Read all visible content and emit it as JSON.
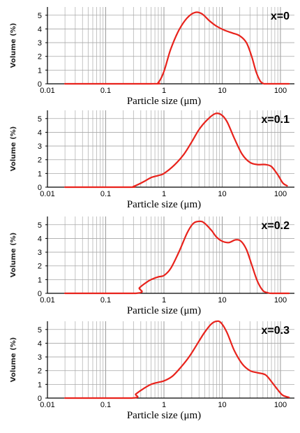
{
  "chart_data": [
    {
      "type": "line",
      "title": "x=0",
      "xlabel": "Particle size (μm)",
      "ylabel": "Volume (%)",
      "xscale": "log",
      "xlim": [
        0.01,
        150
      ],
      "ylim": [
        0,
        5.6
      ],
      "xticks": [
        "0.01",
        "0.1",
        "1",
        "10",
        "100"
      ],
      "yticks": [
        "0",
        "1",
        "2",
        "3",
        "4",
        "5"
      ],
      "grid": true,
      "line_color": "#e8231c",
      "x": [
        0.02,
        0.6,
        0.8,
        1.0,
        1.3,
        1.8,
        2.5,
        3.4,
        4.5,
        6.0,
        8.0,
        11.0,
        15.0,
        20.0,
        26.0,
        32.0,
        38.0,
        45.0,
        52.0,
        60.0,
        140.0
      ],
      "y": [
        0,
        0,
        0.1,
        0.9,
        2.5,
        3.9,
        4.8,
        5.2,
        5.1,
        4.6,
        4.2,
        3.9,
        3.7,
        3.5,
        3.0,
        2.0,
        0.9,
        0.2,
        0,
        0,
        0
      ]
    },
    {
      "type": "line",
      "title": "x=0.1",
      "xlabel": "Particle size (μm)",
      "ylabel": "Volume (%)",
      "xscale": "log",
      "xlim": [
        0.01,
        150
      ],
      "ylim": [
        0,
        5.6
      ],
      "xticks": [
        "0.01",
        "0.1",
        "1",
        "10",
        "100"
      ],
      "yticks": [
        "0",
        "1",
        "2",
        "3",
        "4",
        "5"
      ],
      "grid": true,
      "line_color": "#e8231c",
      "x": [
        0.02,
        0.25,
        0.3,
        0.45,
        0.6,
        0.8,
        1.0,
        1.5,
        2.2,
        3.0,
        4.0,
        5.5,
        7.5,
        9.5,
        12.0,
        16.0,
        22.0,
        30.0,
        40.0,
        55.0,
        70.0,
        90.0,
        110.0,
        130.0
      ],
      "y": [
        0,
        0,
        0.05,
        0.4,
        0.7,
        0.85,
        1.0,
        1.6,
        2.4,
        3.3,
        4.2,
        4.9,
        5.35,
        5.3,
        4.8,
        3.6,
        2.4,
        1.8,
        1.65,
        1.65,
        1.5,
        0.9,
        0.3,
        0.1
      ]
    },
    {
      "type": "line",
      "title": "x=0.2",
      "xlabel": "Particle size (μm)",
      "ylabel": "Volume (%)",
      "xscale": "log",
      "xlim": [
        0.01,
        150
      ],
      "ylim": [
        0,
        5.6
      ],
      "xticks": [
        "0.01",
        "0.1",
        "1",
        "10",
        "100"
      ],
      "yticks": [
        "0",
        "1",
        "2",
        "3",
        "4",
        "5"
      ],
      "grid": true,
      "line_color": "#e8231c",
      "x": [
        0.02,
        0.33,
        0.38,
        0.5,
        0.6,
        0.8,
        1.0,
        1.3,
        1.8,
        2.5,
        3.2,
        4.2,
        5.0,
        6.5,
        8.0,
        10.0,
        13.0,
        17.0,
        21.0,
        26.0,
        32.0,
        40.0,
        50.0,
        60.0,
        70.0,
        140.0
      ],
      "y": [
        0,
        0,
        0.4,
        0.8,
        1.0,
        1.2,
        1.3,
        1.8,
        3.0,
        4.4,
        5.1,
        5.25,
        5.1,
        4.6,
        4.1,
        3.8,
        3.7,
        3.9,
        3.8,
        3.2,
        2.1,
        0.9,
        0.2,
        0.05,
        0,
        0
      ]
    },
    {
      "type": "line",
      "title": "x=0.3",
      "xlabel": "Particle size (μm)",
      "ylabel": "Volume (%)",
      "xscale": "log",
      "xlim": [
        0.01,
        150
      ],
      "ylim": [
        0,
        5.6
      ],
      "xticks": [
        "0.01",
        "0.1",
        "1",
        "10",
        "100"
      ],
      "yticks": [
        "0",
        "1",
        "2",
        "3",
        "4",
        "5"
      ],
      "grid": true,
      "line_color": "#e8231c",
      "x": [
        0.02,
        0.28,
        0.33,
        0.45,
        0.6,
        0.8,
        1.0,
        1.4,
        2.0,
        2.8,
        3.8,
        5.0,
        6.5,
        8.0,
        9.5,
        12.0,
        16.0,
        22.0,
        30.0,
        40.0,
        55.0,
        70.0,
        90.0,
        110.0,
        140.0
      ],
      "y": [
        0,
        0,
        0.3,
        0.7,
        1.0,
        1.15,
        1.25,
        1.6,
        2.3,
        3.1,
        4.0,
        4.8,
        5.4,
        5.6,
        5.5,
        4.8,
        3.5,
        2.5,
        2.0,
        1.85,
        1.7,
        1.2,
        0.6,
        0.2,
        0.05
      ]
    }
  ]
}
